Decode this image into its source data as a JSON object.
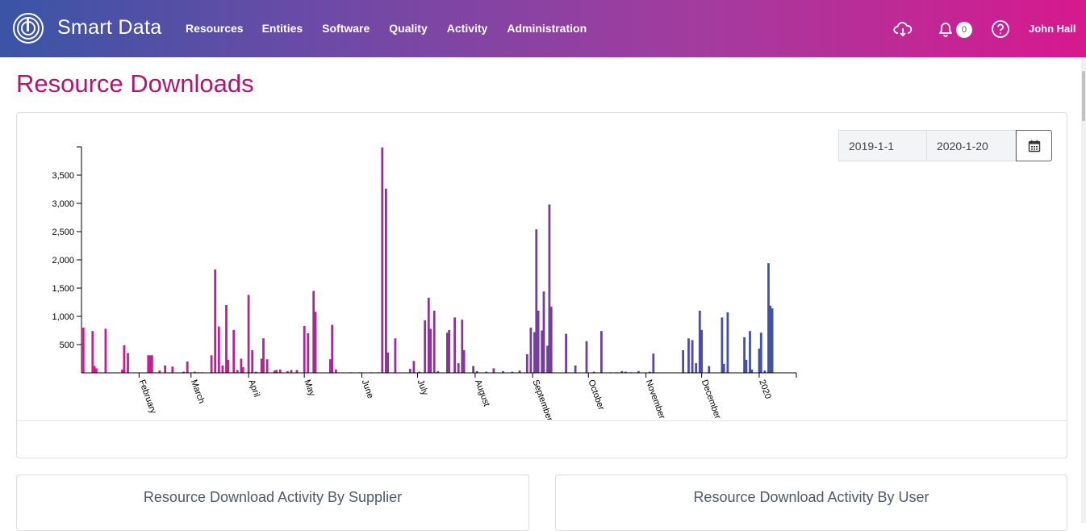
{
  "header": {
    "brand": "Smart Data",
    "nav": [
      "Resources",
      "Entities",
      "Software",
      "Quality",
      "Activity",
      "Administration"
    ],
    "notification_count": "0",
    "user_name": "John Hall",
    "icons": [
      "cloud-download-icon",
      "bell-icon",
      "help-icon"
    ]
  },
  "page": {
    "title": "Resource Downloads"
  },
  "filters": {
    "start_date": "2019-1-1",
    "end_date": "2020-1-20"
  },
  "panels": {
    "supplier_title": "Resource Download Activity By Supplier",
    "user_title": "Resource Download Activity By User"
  },
  "colors": {
    "accent": "#b1156f",
    "bar_start": "#d9168b",
    "bar_end": "#3a55a6"
  },
  "chart_data": {
    "type": "bar",
    "title": "",
    "xlabel": "",
    "ylabel": "",
    "ylim": [
      0,
      4000
    ],
    "yticks": [
      500,
      1000,
      1500,
      2000,
      2500,
      3000,
      3500
    ],
    "ytick_labels": [
      "500",
      "1,000",
      "1,500",
      "2,000",
      "2,500",
      "3,000",
      "3,500"
    ],
    "xtick_labels": [
      {
        "label": "February",
        "day": 31
      },
      {
        "label": "March",
        "day": 59
      },
      {
        "label": "April",
        "day": 90
      },
      {
        "label": "May",
        "day": 120
      },
      {
        "label": "June",
        "day": 151
      },
      {
        "label": "July",
        "day": 181
      },
      {
        "label": "August",
        "day": 212
      },
      {
        "label": "September",
        "day": 243
      },
      {
        "label": "October",
        "day": 273
      },
      {
        "label": "November",
        "day": 304
      },
      {
        "label": "December",
        "day": 334
      },
      {
        "label": "2020",
        "day": 365
      }
    ],
    "x_domain_days": [
      0,
      385
    ],
    "day_values": [
      [
        1,
        800
      ],
      [
        6,
        740
      ],
      [
        7,
        120
      ],
      [
        8,
        80
      ],
      [
        13,
        780
      ],
      [
        22,
        60
      ],
      [
        23,
        490
      ],
      [
        25,
        350
      ],
      [
        36,
        310
      ],
      [
        37,
        310
      ],
      [
        38,
        310
      ],
      [
        42,
        40
      ],
      [
        45,
        130
      ],
      [
        49,
        110
      ],
      [
        55,
        20
      ],
      [
        57,
        200
      ],
      [
        61,
        20
      ],
      [
        63,
        10
      ],
      [
        65,
        10
      ],
      [
        70,
        310
      ],
      [
        72,
        1830
      ],
      [
        74,
        820
      ],
      [
        76,
        130
      ],
      [
        78,
        1200
      ],
      [
        79,
        230
      ],
      [
        82,
        760
      ],
      [
        84,
        50
      ],
      [
        86,
        250
      ],
      [
        87,
        100
      ],
      [
        90,
        1380
      ],
      [
        92,
        400
      ],
      [
        94,
        20
      ],
      [
        97,
        250
      ],
      [
        98,
        610
      ],
      [
        100,
        240
      ],
      [
        104,
        40
      ],
      [
        105,
        50
      ],
      [
        107,
        60
      ],
      [
        111,
        30
      ],
      [
        113,
        50
      ],
      [
        116,
        50
      ],
      [
        120,
        830
      ],
      [
        122,
        700
      ],
      [
        125,
        1450
      ],
      [
        126,
        1080
      ],
      [
        134,
        240
      ],
      [
        135,
        850
      ],
      [
        137,
        60
      ],
      [
        145,
        10
      ],
      [
        150,
        10
      ],
      [
        156,
        10
      ],
      [
        160,
        10
      ],
      [
        162,
        3990
      ],
      [
        164,
        3260
      ],
      [
        165,
        360
      ],
      [
        169,
        610
      ],
      [
        177,
        70
      ],
      [
        179,
        210
      ],
      [
        182,
        20
      ],
      [
        185,
        930
      ],
      [
        187,
        1330
      ],
      [
        188,
        780
      ],
      [
        190,
        1100
      ],
      [
        192,
        30
      ],
      [
        197,
        710
      ],
      [
        198,
        760
      ],
      [
        201,
        980
      ],
      [
        203,
        170
      ],
      [
        205,
        940
      ],
      [
        206,
        400
      ],
      [
        211,
        120
      ],
      [
        213,
        30
      ],
      [
        218,
        20
      ],
      [
        222,
        80
      ],
      [
        227,
        30
      ],
      [
        232,
        20
      ],
      [
        236,
        40
      ],
      [
        240,
        330
      ],
      [
        242,
        800
      ],
      [
        244,
        720
      ],
      [
        245,
        2540
      ],
      [
        246,
        1100
      ],
      [
        248,
        750
      ],
      [
        249,
        1440
      ],
      [
        251,
        480
      ],
      [
        252,
        2980
      ],
      [
        253,
        1170
      ],
      [
        261,
        690
      ],
      [
        266,
        130
      ],
      [
        272,
        560
      ],
      [
        276,
        20
      ],
      [
        280,
        740
      ],
      [
        285,
        10
      ],
      [
        288,
        10
      ],
      [
        291,
        30
      ],
      [
        293,
        20
      ],
      [
        296,
        10
      ],
      [
        300,
        30
      ],
      [
        306,
        20
      ],
      [
        308,
        340
      ],
      [
        324,
        400
      ],
      [
        327,
        610
      ],
      [
        329,
        580
      ],
      [
        331,
        170
      ],
      [
        333,
        1100
      ],
      [
        334,
        760
      ],
      [
        338,
        120
      ],
      [
        345,
        980
      ],
      [
        346,
        160
      ],
      [
        348,
        1070
      ],
      [
        357,
        630
      ],
      [
        358,
        230
      ],
      [
        360,
        740
      ],
      [
        361,
        60
      ],
      [
        365,
        430
      ],
      [
        366,
        710
      ],
      [
        368,
        40
      ],
      [
        370,
        1940
      ],
      [
        371,
        1190
      ],
      [
        372,
        1140
      ]
    ]
  }
}
